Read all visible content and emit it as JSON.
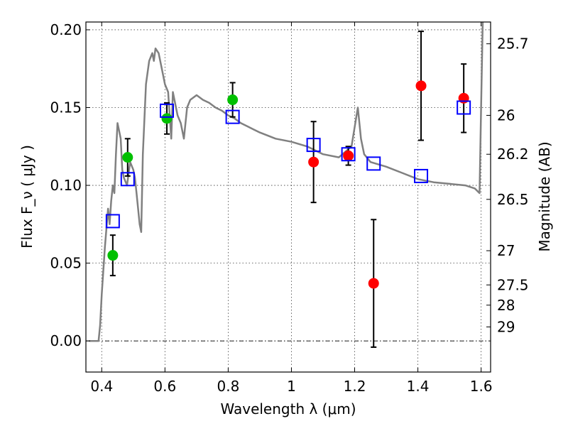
{
  "chart_data": {
    "type": "scatter",
    "title": "",
    "xlabel": "Wavelength  λ (μm)",
    "ylabel": "Flux  F_ν  ( μJy )",
    "ylabel_right": "Magnitude (AB)",
    "xlim": [
      0.35,
      1.63
    ],
    "ylim": [
      -0.02,
      0.205
    ],
    "xticks": [
      0.4,
      0.6,
      0.8,
      1.0,
      1.2,
      1.4,
      1.6
    ],
    "xtick_labels": [
      "0.4",
      "0.6",
      "0.8",
      "1",
      "1.2",
      "1.4",
      "1.6"
    ],
    "yticks": [
      0.0,
      0.05,
      0.1,
      0.15,
      0.2
    ],
    "ytick_labels": [
      "0.00",
      "0.05",
      "0.10",
      "0.15",
      "0.20"
    ],
    "mag_ticks": [
      {
        "label": "25.7",
        "flux": 0.191
      },
      {
        "label": "26",
        "flux": 0.145
      },
      {
        "label": "26.2",
        "flux": 0.12
      },
      {
        "label": "26.5",
        "flux": 0.091
      },
      {
        "label": "27",
        "flux": 0.058
      },
      {
        "label": "27.5",
        "flux": 0.036
      },
      {
        "label": "28",
        "flux": 0.023
      },
      {
        "label": "29",
        "flux": 0.009
      }
    ],
    "zero_line": 0.0,
    "colors": {
      "model": "#808080",
      "green": "#00c000",
      "red": "#ff0000",
      "blue": "#0000ff",
      "errorbar": "#000000"
    },
    "series": [
      {
        "name": "model SED",
        "kind": "line",
        "x": [
          0.36,
          0.39,
          0.395,
          0.4,
          0.41,
          0.42,
          0.425,
          0.43,
          0.435,
          0.44,
          0.445,
          0.45,
          0.455,
          0.46,
          0.465,
          0.47,
          0.48,
          0.49,
          0.5,
          0.505,
          0.51,
          0.515,
          0.52,
          0.525,
          0.53,
          0.54,
          0.55,
          0.56,
          0.565,
          0.57,
          0.58,
          0.59,
          0.6,
          0.61,
          0.62,
          0.625,
          0.63,
          0.64,
          0.65,
          0.66,
          0.67,
          0.68,
          0.7,
          0.72,
          0.74,
          0.76,
          0.78,
          0.8,
          0.82,
          0.84,
          0.86,
          0.88,
          0.9,
          0.95,
          1.0,
          1.05,
          1.1,
          1.15,
          1.19,
          1.21,
          1.22,
          1.23,
          1.25,
          1.3,
          1.35,
          1.4,
          1.45,
          1.5,
          1.55,
          1.58,
          1.59,
          1.595,
          1.6,
          1.605,
          1.61
        ],
        "y": [
          0.0,
          0.0,
          0.01,
          0.03,
          0.06,
          0.085,
          0.075,
          0.09,
          0.1,
          0.095,
          0.12,
          0.14,
          0.135,
          0.13,
          0.11,
          0.105,
          0.1,
          0.115,
          0.11,
          0.105,
          0.095,
          0.085,
          0.075,
          0.07,
          0.12,
          0.165,
          0.18,
          0.185,
          0.18,
          0.188,
          0.185,
          0.175,
          0.165,
          0.16,
          0.13,
          0.16,
          0.155,
          0.145,
          0.14,
          0.13,
          0.15,
          0.155,
          0.158,
          0.155,
          0.153,
          0.15,
          0.148,
          0.145,
          0.143,
          0.14,
          0.138,
          0.136,
          0.134,
          0.13,
          0.128,
          0.125,
          0.12,
          0.118,
          0.125,
          0.15,
          0.13,
          0.12,
          0.115,
          0.112,
          0.108,
          0.104,
          0.102,
          0.101,
          0.1,
          0.098,
          0.096,
          0.095,
          0.15,
          0.205,
          0.21
        ]
      },
      {
        "name": "green photometry",
        "kind": "points",
        "marker": "circle",
        "color": "#00c000",
        "points": [
          {
            "x": 0.435,
            "y": 0.055,
            "err": 0.013
          },
          {
            "x": 0.482,
            "y": 0.118,
            "err": 0.012
          },
          {
            "x": 0.606,
            "y": 0.143,
            "err": 0.01
          },
          {
            "x": 0.814,
            "y": 0.155,
            "err": 0.011
          }
        ]
      },
      {
        "name": "red photometry",
        "kind": "points",
        "marker": "circle",
        "color": "#ff0000",
        "points": [
          {
            "x": 1.07,
            "y": 0.115,
            "err": 0.026
          },
          {
            "x": 1.18,
            "y": 0.119,
            "err": 0.006
          },
          {
            "x": 1.26,
            "y": 0.037,
            "err": 0.041
          },
          {
            "x": 1.41,
            "y": 0.164,
            "err": 0.035
          },
          {
            "x": 1.545,
            "y": 0.156,
            "err": 0.022
          }
        ]
      },
      {
        "name": "model photometry",
        "kind": "points",
        "marker": "square",
        "color": "#0000ff",
        "points": [
          {
            "x": 0.435,
            "y": 0.077
          },
          {
            "x": 0.482,
            "y": 0.104
          },
          {
            "x": 0.606,
            "y": 0.148
          },
          {
            "x": 0.814,
            "y": 0.144
          },
          {
            "x": 1.07,
            "y": 0.126
          },
          {
            "x": 1.18,
            "y": 0.12
          },
          {
            "x": 1.26,
            "y": 0.114
          },
          {
            "x": 1.41,
            "y": 0.106
          },
          {
            "x": 1.545,
            "y": 0.15
          }
        ]
      }
    ]
  }
}
